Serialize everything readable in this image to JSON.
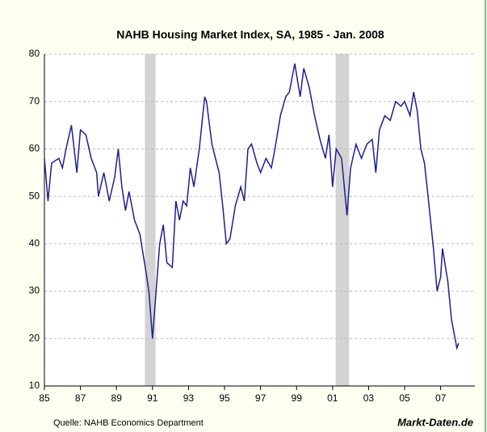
{
  "chart_data": {
    "type": "line",
    "title": "NAHB Housing Market Index, SA, 1985 - Jan. 2008",
    "source": "Quelle: NAHB Economics Department",
    "brand": "Markt-Daten.de",
    "x": [
      1985.0,
      1985.2,
      1985.4,
      1985.8,
      1986.0,
      1986.2,
      1986.5,
      1986.8,
      1987.0,
      1987.3,
      1987.6,
      1987.9,
      1988.0,
      1988.3,
      1988.6,
      1988.9,
      1989.1,
      1989.3,
      1989.5,
      1989.7,
      1990.0,
      1990.3,
      1990.6,
      1990.8,
      1991.0,
      1991.2,
      1991.4,
      1991.6,
      1991.8,
      1992.1,
      1992.3,
      1992.5,
      1992.7,
      1992.9,
      1993.1,
      1993.3,
      1993.6,
      1993.9,
      1994.0,
      1994.3,
      1994.7,
      1994.9,
      1995.1,
      1995.3,
      1995.6,
      1995.9,
      1996.1,
      1996.3,
      1996.5,
      1996.8,
      1997.0,
      1997.3,
      1997.6,
      1997.8,
      1998.1,
      1998.4,
      1998.6,
      1998.9,
      1999.2,
      1999.4,
      1999.7,
      2000.0,
      2000.3,
      2000.6,
      2000.8,
      2001.0,
      2001.2,
      2001.5,
      2001.8,
      2002.0,
      2002.3,
      2002.6,
      2002.9,
      2003.2,
      2003.4,
      2003.6,
      2003.9,
      2004.2,
      2004.5,
      2004.8,
      2005.0,
      2005.3,
      2005.5,
      2005.7,
      2005.9,
      2006.1,
      2006.3,
      2006.6,
      2006.8,
      2007.0,
      2007.1,
      2007.4,
      2007.6,
      2007.8,
      2007.9,
      2008.0
    ],
    "series": [
      {
        "color": "#1f1f8f",
        "values": [
          58,
          49,
          57,
          58,
          56,
          60,
          65,
          55,
          64,
          63,
          58,
          55,
          50,
          55,
          49,
          54,
          60,
          52,
          47,
          51,
          45,
          42,
          35,
          30,
          20,
          30,
          40,
          44,
          36,
          35,
          49,
          45,
          49,
          48,
          56,
          52,
          60,
          71,
          70,
          61,
          55,
          48,
          40,
          41,
          48,
          52,
          49,
          60,
          61,
          57,
          55,
          58,
          56,
          60,
          67,
          71,
          72,
          78,
          71,
          77,
          73,
          67,
          62,
          58,
          63,
          52,
          60,
          58,
          46,
          56,
          61,
          58,
          61,
          62,
          55,
          64,
          67,
          66,
          70,
          69,
          70,
          67,
          72,
          68,
          60,
          57,
          50,
          39,
          30,
          33,
          39,
          32,
          24,
          20,
          18,
          19
        ]
      }
    ],
    "recessions": [
      [
        1990.58,
        1991.17
      ],
      [
        2001.17,
        2001.92
      ]
    ],
    "recession_color": "#d3d3d3",
    "xlim": [
      1985,
      2008.9
    ],
    "ylim": [
      10,
      80
    ],
    "xticks": [
      {
        "value": 1985,
        "label": "85"
      },
      {
        "value": 1987,
        "label": "87"
      },
      {
        "value": 1989,
        "label": "89"
      },
      {
        "value": 1991,
        "label": "91"
      },
      {
        "value": 1993,
        "label": "93"
      },
      {
        "value": 1995,
        "label": "95"
      },
      {
        "value": 1997,
        "label": "97"
      },
      {
        "value": 1999,
        "label": "99"
      },
      {
        "value": 2001,
        "label": "01"
      },
      {
        "value": 2003,
        "label": "03"
      },
      {
        "value": 2005,
        "label": "05"
      },
      {
        "value": 2007,
        "label": "07"
      }
    ],
    "yticks": [
      10,
      20,
      30,
      40,
      50,
      60,
      70,
      80
    ],
    "grid": true
  }
}
